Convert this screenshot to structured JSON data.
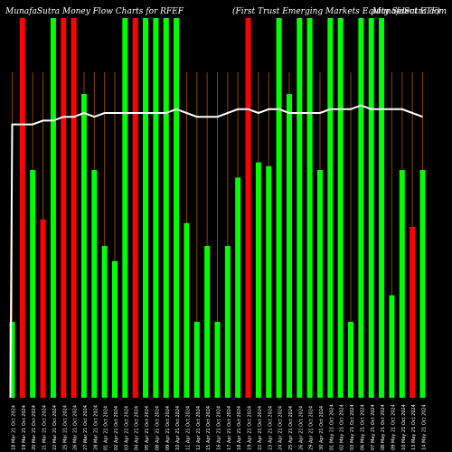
{
  "header": {
    "left": "MunafaSutra  Money Flow  Charts for RFEF",
    "middle": "(First Trust Emerging Markets Equity Select ETF)",
    "right": "MunafaSutra.com"
  },
  "chart_data": {
    "type": "bar",
    "title": "",
    "xlabel": "",
    "ylabel": "",
    "ylim": [
      0,
      100
    ],
    "bar_color_up": "#00ff00",
    "bar_color_down": "#ff0000",
    "line_color": "#ffffff",
    "gridline_color": "#8b4500",
    "background": "#000000",
    "categories": [
      "18 Mar 21 Oct 2024",
      "19 Mar 21 Oct 2024",
      "20 Mar 21 Oct 2024",
      "21 Mar 21 Oct 2024",
      "22 Mar 21 Oct 2024",
      "25 Mar 21 Oct 2024",
      "26 Mar 21 Oct 2024",
      "27 Mar 21 Oct 2024",
      "28 Mar 21 Oct 2024",
      "01 Apr 21 Oct 2024",
      "02 Apr 21 Oct 2024",
      "03 Apr 21 Oct 2024",
      "04 Apr 21 Oct 2024",
      "05 Apr 21 Oct 2024",
      "08 Apr 21 Oct 2024",
      "09 Apr 21 Oct 2024",
      "10 Apr 21 Oct 2024",
      "11 Apr 21 Oct 2024",
      "12 Apr 21 Oct 2024",
      "15 Apr 21 Oct 2024",
      "16 Apr 21 Oct 2024",
      "17 Apr 21 Oct 2024",
      "18 Apr 21 Oct 2024",
      "19 Apr 21 Oct 2024",
      "22 Apr 21 Oct 2024",
      "23 Apr 21 Oct 2024",
      "24 Apr 21 Oct 2024",
      "25 Apr 21 Oct 2024",
      "26 Apr 21 Oct 2024",
      "29 Apr 21 Oct 2024",
      "30 Apr 21 Oct 2024",
      "01 May 21 Oct 2024",
      "02 May 21 Oct 2024",
      "03 May 21 Oct 2024",
      "06 May 21 Oct 2024",
      "07 May 21 Oct 2024",
      "08 May 21 Oct 2024",
      "09 May 21 Oct 2024",
      "10 May 21 Oct 2024",
      "13 May 21 Oct 2024",
      "14 May 21 Oct 2024"
    ],
    "series": [
      {
        "values": [
          20,
          100,
          60,
          47,
          100,
          100,
          100,
          80,
          60,
          40,
          36,
          100,
          100,
          100,
          100,
          100,
          100,
          46,
          20,
          40,
          20,
          40,
          58,
          100,
          62,
          61,
          100,
          80,
          100,
          100,
          60,
          100,
          100,
          20,
          100,
          100,
          100,
          27,
          60,
          45,
          60
        ],
        "colors": [
          "up",
          "down",
          "up",
          "down",
          "up",
          "down",
          "down",
          "up",
          "up",
          "up",
          "up",
          "up",
          "down",
          "up",
          "up",
          "up",
          "up",
          "up",
          "up",
          "up",
          "up",
          "up",
          "up",
          "down",
          "up",
          "up",
          "up",
          "up",
          "up",
          "up",
          "up",
          "up",
          "up",
          "up",
          "up",
          "up",
          "up",
          "up",
          "up",
          "down",
          "up"
        ]
      },
      {
        "values": [
          72,
          72,
          72,
          73,
          73,
          74,
          74,
          75,
          74,
          75,
          75,
          75,
          75,
          75,
          75,
          75,
          76,
          75,
          74,
          74,
          74,
          75,
          76,
          76,
          75,
          76,
          76,
          75,
          75,
          75,
          75,
          76,
          76,
          76,
          77,
          76,
          76,
          76,
          76,
          75,
          74
        ]
      }
    ],
    "line_start_low": 0
  }
}
